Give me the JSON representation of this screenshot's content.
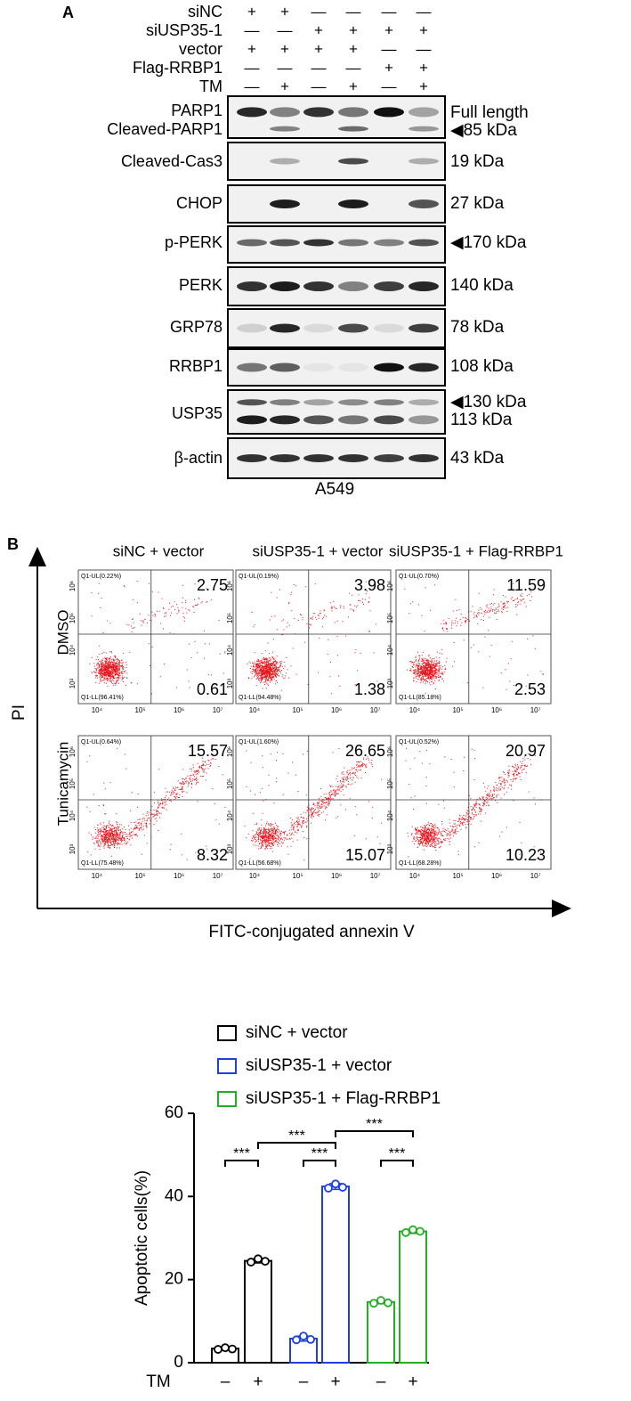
{
  "panel_a": {
    "label": "A",
    "conditions": [
      {
        "name": "siNC",
        "marks": [
          "+",
          "+",
          "—",
          "—",
          "—",
          "—"
        ]
      },
      {
        "name": "siUSP35-1",
        "marks": [
          "—",
          "—",
          "+",
          "+",
          "+",
          "+"
        ]
      },
      {
        "name": "vector",
        "marks": [
          "+",
          "+",
          "+",
          "+",
          "—",
          "—"
        ]
      },
      {
        "name": "Flag-RRBP1",
        "marks": [
          "—",
          "—",
          "—",
          "—",
          "+",
          "+"
        ]
      },
      {
        "name": "TM",
        "marks": [
          "—",
          "+",
          "—",
          "+",
          "—",
          "+"
        ]
      }
    ],
    "blots": [
      {
        "labels": [
          "PARP1",
          "Cleaved-PARP1"
        ],
        "sizes": [
          "Full length",
          "◀85 kDa"
        ]
      },
      {
        "labels": [
          "Cleaved-Cas3"
        ],
        "sizes": [
          "19 kDa"
        ]
      },
      {
        "labels": [
          "CHOP"
        ],
        "sizes": [
          "27 kDa"
        ]
      },
      {
        "labels": [
          "p-PERK"
        ],
        "sizes": [
          "◀170 kDa"
        ]
      },
      {
        "labels": [
          "PERK"
        ],
        "sizes": [
          "140 kDa"
        ]
      },
      {
        "labels": [
          "GRP78"
        ],
        "sizes": [
          "78 kDa"
        ]
      },
      {
        "labels": [
          "RRBP1"
        ],
        "sizes": [
          "108 kDa"
        ]
      },
      {
        "labels": [
          "USP35"
        ],
        "sizes": [
          "◀130 kDa",
          "113 kDa"
        ]
      },
      {
        "labels": [
          "β-actin"
        ],
        "sizes": [
          "43 kDa"
        ]
      }
    ],
    "cell_line": "A549"
  },
  "panel_b": {
    "label": "B",
    "columns": [
      "siNC + vector",
      "siUSP35-1 + vector",
      "siUSP35-1 + Flag-RRBP1"
    ],
    "rows": [
      "DMSO",
      "Tunicamycin"
    ],
    "y_axis": "PI",
    "x_axis": "FITC-conjugated annexin V",
    "x_ticks": [
      "10⁴",
      "10⁵",
      "10⁶",
      "10⁷"
    ],
    "y_ticks": [
      "10⁶",
      "10⁵",
      "10⁴",
      "10³"
    ],
    "plots": [
      [
        {
          "ul": "Q1-UL(0.22%)",
          "ur": "2.75",
          "lr": "0.61",
          "ll": "Q1-LL(96.41%)"
        },
        {
          "ul": "Q1-UL(0.19%)",
          "ur": "3.98",
          "lr": "1.38",
          "ll": "Q1-LL(94.48%)"
        },
        {
          "ul": "Q1-UL(0.70%)",
          "ur": "11.59",
          "lr": "2.53",
          "ll": "Q1-LL(85.18%)"
        }
      ],
      [
        {
          "ul": "Q1-UL(0.64%)",
          "ur": "15.57",
          "lr": "8.32",
          "ll": "Q1-LL(75.48%)"
        },
        {
          "ul": "Q1-UL(1.60%)",
          "ur": "26.65",
          "lr": "15.07",
          "ll": "Q1-LL(56.68%)"
        },
        {
          "ul": "Q1-UL(0.52%)",
          "ur": "20.97",
          "lr": "10.23",
          "ll": "Q1-LL(68.28%)"
        }
      ]
    ]
  },
  "chart_data": {
    "type": "bar",
    "ylabel": "Apoptotic cells(%)",
    "xlabel": "TM",
    "categories": [
      "–",
      "+"
    ],
    "series": [
      {
        "name": "siNC + vector",
        "color": "#000000",
        "values": [
          3.4,
          24.5
        ],
        "errors": [
          0.3,
          0.5
        ],
        "points": [
          [
            3.2,
            3.6,
            3.3
          ],
          [
            24.2,
            25.0,
            24.4
          ]
        ]
      },
      {
        "name": "siUSP35-1 + vector",
        "color": "#1f3fe0",
        "values": [
          5.8,
          42.4
        ],
        "errors": [
          0.6,
          0.7
        ],
        "points": [
          [
            5.5,
            6.4,
            5.6
          ],
          [
            42.0,
            43.0,
            42.2
          ]
        ]
      },
      {
        "name": "siUSP35-1 + Flag-RRBP1",
        "color": "#22b022",
        "values": [
          14.6,
          31.6
        ],
        "errors": [
          0.4,
          0.5
        ],
        "points": [
          [
            14.3,
            15.0,
            14.4
          ],
          [
            31.3,
            32.0,
            31.6
          ]
        ]
      }
    ],
    "ylim": [
      0,
      60
    ],
    "yticks": [
      0,
      20,
      40,
      60
    ],
    "annotations": [
      "***",
      "***",
      "***",
      "***",
      "***"
    ]
  }
}
